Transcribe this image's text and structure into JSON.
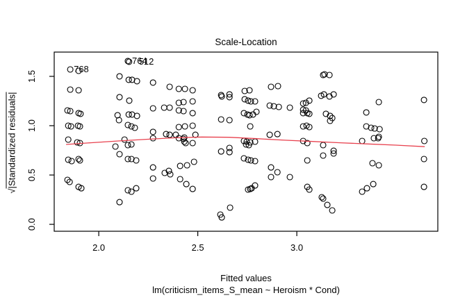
{
  "figure": {
    "background": "#ffffff",
    "border_color": "#000000",
    "point_color": "#000000",
    "smooth_color": "#e8414e"
  },
  "chart_data": {
    "type": "scatter",
    "title": "Scale-Location",
    "xlabel": "Fitted values",
    "sublabel": "lm(criticism_items_S_mean ~ Heroism * Cond)",
    "ylabel": "√|Standardized residuals|",
    "ylabel_radical": "√",
    "ylabel_core": "|Standardized residuals|",
    "grid": false,
    "legend": null,
    "xlim": [
      1.775,
      3.712
    ],
    "ylim": [
      -0.07,
      1.746
    ],
    "x_ticks": {
      "values": [
        2.0,
        2.5,
        3.0
      ],
      "labels": [
        "2.0",
        "2.5",
        "3.0"
      ]
    },
    "y_ticks": {
      "values": [
        0.0,
        0.5,
        1.0,
        1.5
      ],
      "labels": [
        "0.0",
        "0.5",
        "1.0",
        "1.5"
      ]
    },
    "point_labels": [
      {
        "text": "768",
        "x": 1.856,
        "y": 1.57,
        "dx": 5
      },
      {
        "text": "764",
        "x": 2.147,
        "y": 1.655,
        "dx": 6
      },
      {
        "text": "512",
        "x": 2.153,
        "y": 1.648,
        "dx": 14
      }
    ],
    "smooth_line": [
      [
        1.835,
        0.81
      ],
      [
        1.958,
        0.827
      ],
      [
        2.098,
        0.845
      ],
      [
        2.24,
        0.862
      ],
      [
        2.38,
        0.877
      ],
      [
        2.52,
        0.885
      ],
      [
        2.66,
        0.882
      ],
      [
        2.8,
        0.868
      ],
      [
        2.94,
        0.853
      ],
      [
        3.08,
        0.84
      ],
      [
        3.22,
        0.827
      ],
      [
        3.36,
        0.815
      ],
      [
        3.5,
        0.803
      ],
      [
        3.646,
        0.787
      ]
    ],
    "points": [
      [
        1.856,
        1.57
      ],
      [
        1.898,
        1.556
      ],
      [
        1.856,
        1.366
      ],
      [
        1.898,
        1.359
      ],
      [
        1.842,
        1.155
      ],
      [
        1.856,
        1.148
      ],
      [
        1.898,
        1.127
      ],
      [
        1.908,
        1.12
      ],
      [
        1.846,
        1.0
      ],
      [
        1.86,
        0.993
      ],
      [
        1.895,
        1.0
      ],
      [
        1.905,
        0.993
      ],
      [
        1.846,
        0.859
      ],
      [
        1.891,
        0.831
      ],
      [
        1.905,
        0.824
      ],
      [
        1.846,
        0.655
      ],
      [
        1.863,
        0.641
      ],
      [
        1.898,
        0.662
      ],
      [
        1.905,
        0.648
      ],
      [
        1.842,
        0.451
      ],
      [
        1.853,
        0.43
      ],
      [
        1.898,
        0.38
      ],
      [
        1.912,
        0.366
      ],
      [
        2.147,
        1.655
      ],
      [
        2.153,
        1.648
      ],
      [
        2.105,
        1.5
      ],
      [
        2.151,
        1.465
      ],
      [
        2.168,
        1.465
      ],
      [
        2.193,
        1.451
      ],
      [
        2.105,
        1.289
      ],
      [
        2.154,
        1.254
      ],
      [
        2.095,
        1.106
      ],
      [
        2.102,
        1.056
      ],
      [
        2.151,
        1.113
      ],
      [
        2.168,
        1.113
      ],
      [
        2.193,
        1.099
      ],
      [
        2.147,
        1.007
      ],
      [
        2.165,
        0.993
      ],
      [
        2.182,
        0.979
      ],
      [
        2.13,
        0.859
      ],
      [
        2.084,
        0.789
      ],
      [
        2.147,
        0.803
      ],
      [
        2.165,
        0.81
      ],
      [
        2.105,
        0.711
      ],
      [
        2.147,
        0.662
      ],
      [
        2.165,
        0.662
      ],
      [
        2.189,
        0.648
      ],
      [
        2.147,
        0.345
      ],
      [
        2.165,
        0.331
      ],
      [
        2.189,
        0.366
      ],
      [
        2.105,
        0.225
      ],
      [
        2.274,
        1.437
      ],
      [
        2.358,
        1.394
      ],
      [
        2.274,
        1.176
      ],
      [
        2.33,
        1.183
      ],
      [
        2.358,
        1.183
      ],
      [
        2.274,
        0.937
      ],
      [
        2.34,
        0.915
      ],
      [
        2.358,
        0.908
      ],
      [
        2.274,
        0.873
      ],
      [
        2.274,
        0.577
      ],
      [
        2.274,
        0.465
      ],
      [
        2.333,
        0.521
      ],
      [
        2.354,
        0.542
      ],
      [
        2.361,
        0.507
      ],
      [
        2.404,
        1.373
      ],
      [
        2.435,
        1.373
      ],
      [
        2.474,
        1.359
      ],
      [
        2.404,
        1.232
      ],
      [
        2.428,
        1.239
      ],
      [
        2.474,
        1.246
      ],
      [
        2.404,
        1.155
      ],
      [
        2.428,
        1.148
      ],
      [
        2.474,
        1.127
      ],
      [
        2.404,
        0.986
      ],
      [
        2.435,
        0.993
      ],
      [
        2.474,
        1.0
      ],
      [
        2.389,
        0.908
      ],
      [
        2.488,
        0.908
      ],
      [
        2.432,
        0.88
      ],
      [
        2.404,
        0.873
      ],
      [
        2.428,
        0.866
      ],
      [
        2.432,
        0.838
      ],
      [
        2.439,
        0.824
      ],
      [
        2.474,
        0.824
      ],
      [
        2.411,
        0.592
      ],
      [
        2.446,
        0.599
      ],
      [
        2.481,
        0.634
      ],
      [
        2.411,
        0.458
      ],
      [
        2.442,
        0.408
      ],
      [
        2.474,
        0.359
      ],
      [
        2.618,
        1.31
      ],
      [
        2.621,
        1.296
      ],
      [
        2.66,
        1.317
      ],
      [
        2.66,
        1.289
      ],
      [
        2.618,
        1.063
      ],
      [
        2.66,
        1.056
      ],
      [
        2.618,
        0.739
      ],
      [
        2.66,
        0.775
      ],
      [
        2.66,
        0.732
      ],
      [
        2.663,
        0.169
      ],
      [
        2.614,
        0.099
      ],
      [
        2.621,
        0.07
      ],
      [
        2.737,
        1.352
      ],
      [
        2.761,
        1.359
      ],
      [
        2.737,
        1.268
      ],
      [
        2.754,
        1.254
      ],
      [
        2.768,
        1.246
      ],
      [
        2.789,
        1.246
      ],
      [
        2.733,
        1.127
      ],
      [
        2.751,
        1.113
      ],
      [
        2.761,
        1.106
      ],
      [
        2.779,
        1.113
      ],
      [
        2.796,
        1.141
      ],
      [
        2.765,
        0.993
      ],
      [
        2.733,
        0.845
      ],
      [
        2.747,
        0.838
      ],
      [
        2.765,
        0.831
      ],
      [
        2.789,
        0.838
      ],
      [
        2.744,
        0.81
      ],
      [
        2.758,
        0.803
      ],
      [
        2.733,
        0.669
      ],
      [
        2.754,
        0.655
      ],
      [
        2.768,
        0.648
      ],
      [
        2.789,
        0.641
      ],
      [
        2.754,
        0.352
      ],
      [
        2.765,
        0.359
      ],
      [
        2.772,
        0.366
      ],
      [
        2.789,
        0.394
      ],
      [
        2.87,
        1.394
      ],
      [
        2.905,
        1.401
      ],
      [
        2.863,
        1.204
      ],
      [
        2.884,
        1.197
      ],
      [
        2.909,
        1.19
      ],
      [
        2.965,
        1.183
      ],
      [
        2.863,
        0.908
      ],
      [
        2.902,
        0.915
      ],
      [
        2.87,
        0.577
      ],
      [
        2.902,
        0.528
      ],
      [
        2.87,
        0.479
      ],
      [
        2.965,
        0.479
      ],
      [
        3.063,
        1.254
      ],
      [
        3.032,
        1.225
      ],
      [
        3.046,
        1.232
      ],
      [
        3.032,
        1.162
      ],
      [
        3.046,
        1.155
      ],
      [
        3.032,
        1.127
      ],
      [
        3.053,
        1.127
      ],
      [
        3.063,
        1.12
      ],
      [
        3.032,
        0.993
      ],
      [
        3.049,
        1.0
      ],
      [
        3.063,
        0.986
      ],
      [
        3.032,
        0.845
      ],
      [
        3.053,
        0.824
      ],
      [
        3.053,
        0.648
      ],
      [
        3.053,
        0.38
      ],
      [
        3.063,
        0.352
      ],
      [
        3.133,
        1.514
      ],
      [
        3.14,
        1.521
      ],
      [
        3.165,
        1.514
      ],
      [
        3.123,
        1.303
      ],
      [
        3.137,
        1.317
      ],
      [
        3.165,
        1.296
      ],
      [
        3.186,
        1.317
      ],
      [
        3.147,
        1.12
      ],
      [
        3.168,
        1.099
      ],
      [
        3.179,
        1.077
      ],
      [
        3.168,
        1.049
      ],
      [
        3.133,
        0.803
      ],
      [
        3.186,
        0.746
      ],
      [
        3.186,
        0.718
      ],
      [
        3.133,
        0.697
      ],
      [
        3.126,
        0.275
      ],
      [
        3.133,
        0.261
      ],
      [
        3.154,
        0.197
      ],
      [
        3.179,
        0.141
      ],
      [
        3.414,
        1.239
      ],
      [
        3.351,
        1.134
      ],
      [
        3.351,
        0.993
      ],
      [
        3.375,
        0.979
      ],
      [
        3.393,
        0.972
      ],
      [
        3.418,
        0.965
      ],
      [
        3.414,
        0.887
      ],
      [
        3.389,
        0.873
      ],
      [
        3.411,
        0.873
      ],
      [
        3.33,
        0.845
      ],
      [
        3.382,
        0.62
      ],
      [
        3.414,
        0.599
      ],
      [
        3.33,
        0.331
      ],
      [
        3.354,
        0.366
      ],
      [
        3.386,
        0.408
      ],
      [
        3.642,
        1.261
      ],
      [
        3.644,
        0.845
      ],
      [
        3.642,
        0.662
      ],
      [
        3.642,
        0.38
      ]
    ]
  }
}
